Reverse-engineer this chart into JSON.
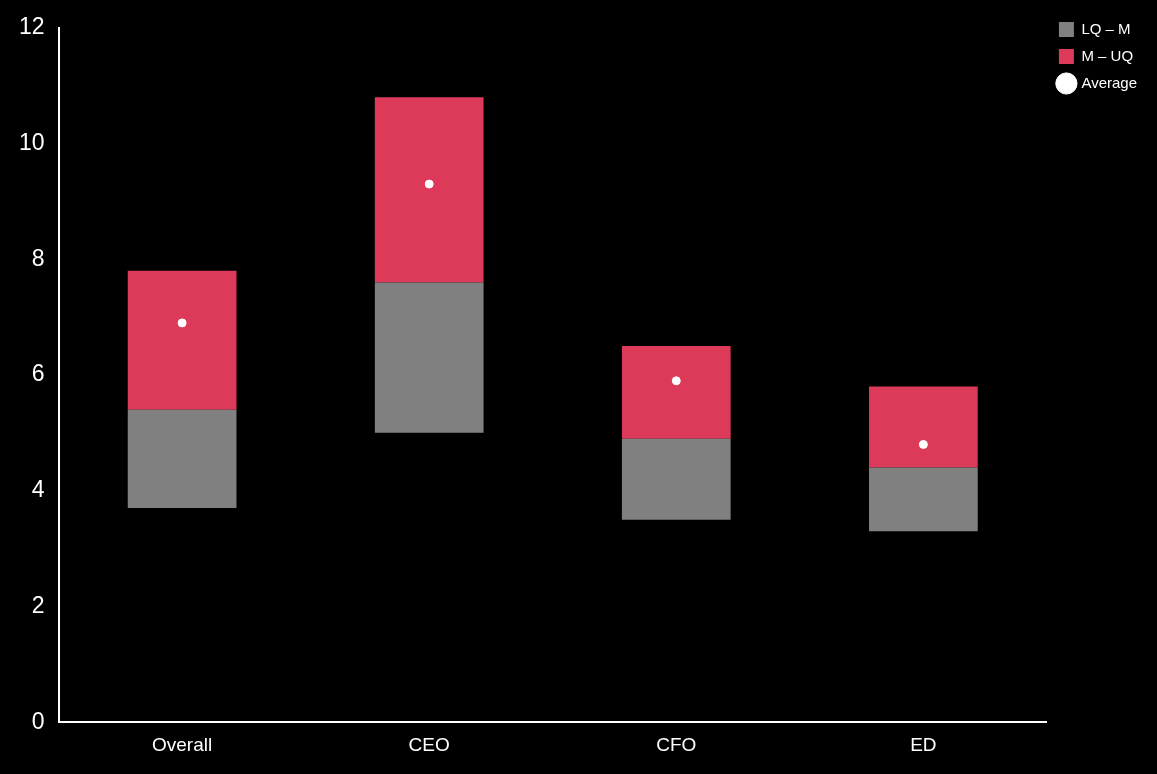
{
  "chart_data": {
    "type": "bar",
    "categories": [
      "Overall",
      "CEO",
      "CFO",
      "ED"
    ],
    "series": [
      {
        "name": "LQ – M",
        "color": "#808080",
        "base": [
          3.7,
          5.0,
          3.5,
          3.3
        ],
        "values": [
          1.7,
          2.6,
          1.4,
          1.1
        ]
      },
      {
        "name": "M – UQ",
        "color": "#dc3a58",
        "base": [
          5.4,
          7.6,
          4.9,
          4.4
        ],
        "values": [
          2.4,
          3.2,
          1.6,
          1.4
        ]
      },
      {
        "name": "Average",
        "type": "scatter",
        "marker": "circle",
        "color": "#ffffff",
        "x": [
          "Overall",
          "CEO",
          "CFO",
          "ED"
        ],
        "values": [
          6.9,
          9.3,
          5.9,
          4.8
        ]
      }
    ],
    "ylim": [
      0,
      12
    ],
    "yticks": [
      0,
      2,
      4,
      6,
      8,
      10,
      12
    ],
    "legend": "top right"
  }
}
